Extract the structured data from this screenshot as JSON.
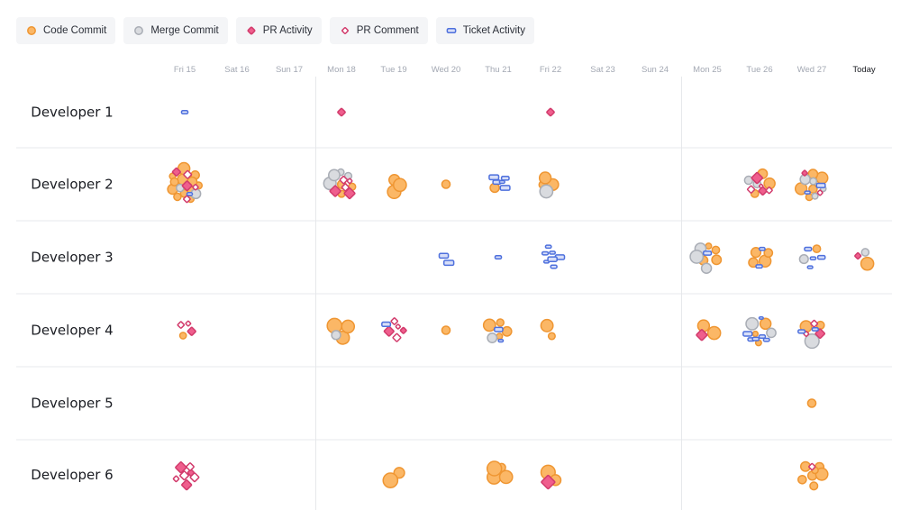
{
  "legend": [
    {
      "key": "code",
      "label": "Code Commit",
      "icon": "orange-circle-icon"
    },
    {
      "key": "merge",
      "label": "Merge Commit",
      "icon": "gray-circle-icon"
    },
    {
      "key": "pr",
      "label": "PR Activity",
      "icon": "pink-diamond-icon"
    },
    {
      "key": "prc",
      "label": "PR Comment",
      "icon": "pink-diamond-outline-icon"
    },
    {
      "key": "ticket",
      "label": "Ticket Activity",
      "icon": "blue-rectangle-icon"
    }
  ],
  "colors": {
    "code_fill": "#fbb766",
    "code_stroke": "#ef9632",
    "merge_fill": "#d9dbdf",
    "merge_stroke": "#a9adb5",
    "pr_fill": "#ef5e8d",
    "pr_stroke": "#d23b6c",
    "prc_stroke": "#d23b6c",
    "ticket_fill": "#d7def8",
    "ticket_stroke": "#4e70dd",
    "grid": "#eceef1",
    "divider": "#e6e8eb"
  },
  "chart_data": {
    "type": "scatter",
    "title": "",
    "days": [
      "Fri 15",
      "Sat 16",
      "Sun 17",
      "Mon 18",
      "Tue 19",
      "Wed 20",
      "Thu 21",
      "Fri 22",
      "Sat 23",
      "Sun 24",
      "Mon 25",
      "Tue 26",
      "Wed 27",
      "Today"
    ],
    "today_label": "Today",
    "rows": [
      "Developer 1",
      "Developer 2",
      "Developer 3",
      "Developer 4",
      "Developer 5",
      "Developer 6"
    ],
    "week_dividers_before": [
      "Mon 18",
      "Mon 25"
    ],
    "series": [
      {
        "name": "Code Commit",
        "key": "code",
        "counts": [
          [
            0,
            0,
            0,
            0,
            0,
            0,
            0,
            0,
            0,
            0,
            0,
            0,
            0,
            0
          ],
          [
            12,
            0,
            0,
            3,
            3,
            1,
            1,
            3,
            0,
            0,
            0,
            3,
            5,
            0
          ],
          [
            0,
            0,
            0,
            0,
            0,
            0,
            0,
            0,
            0,
            0,
            4,
            4,
            1,
            1
          ],
          [
            1,
            0,
            0,
            3,
            0,
            1,
            4,
            2,
            0,
            0,
            2,
            3,
            2,
            0
          ],
          [
            0,
            0,
            0,
            0,
            0,
            0,
            0,
            0,
            0,
            0,
            0,
            0,
            1,
            0
          ],
          [
            0,
            0,
            0,
            0,
            2,
            0,
            4,
            2,
            0,
            0,
            0,
            0,
            7,
            0
          ]
        ]
      },
      {
        "name": "Merge Commit",
        "key": "merge",
        "counts": [
          [
            0,
            0,
            0,
            0,
            0,
            0,
            0,
            0,
            0,
            0,
            0,
            0,
            0,
            0
          ],
          [
            2,
            0,
            0,
            4,
            0,
            0,
            0,
            1,
            0,
            0,
            0,
            2,
            4,
            0
          ],
          [
            0,
            0,
            0,
            0,
            0,
            0,
            0,
            0,
            0,
            0,
            3,
            0,
            1,
            1
          ],
          [
            0,
            0,
            0,
            1,
            0,
            0,
            1,
            0,
            0,
            0,
            0,
            2,
            1,
            0
          ],
          [
            0,
            0,
            0,
            0,
            0,
            0,
            0,
            0,
            0,
            0,
            0,
            0,
            0,
            0
          ],
          [
            0,
            0,
            0,
            0,
            0,
            0,
            0,
            0,
            0,
            0,
            0,
            0,
            0,
            0
          ]
        ]
      },
      {
        "name": "PR Activity",
        "key": "pr",
        "counts": [
          [
            0,
            0,
            0,
            1,
            0,
            0,
            0,
            1,
            0,
            0,
            0,
            0,
            0,
            0
          ],
          [
            2,
            0,
            0,
            2,
            0,
            0,
            0,
            0,
            0,
            0,
            0,
            2,
            1,
            0
          ],
          [
            0,
            0,
            0,
            0,
            0,
            0,
            0,
            0,
            0,
            0,
            0,
            0,
            0,
            1
          ],
          [
            1,
            0,
            0,
            0,
            2,
            0,
            0,
            0,
            0,
            0,
            1,
            0,
            1,
            0
          ],
          [
            0,
            0,
            0,
            0,
            0,
            0,
            0,
            0,
            0,
            0,
            0,
            0,
            0,
            0
          ],
          [
            3,
            0,
            0,
            0,
            0,
            0,
            0,
            1,
            0,
            0,
            0,
            0,
            0,
            0
          ]
        ]
      },
      {
        "name": "PR Comment",
        "key": "prc",
        "counts": [
          [
            0,
            0,
            0,
            0,
            0,
            0,
            0,
            0,
            0,
            0,
            0,
            0,
            0,
            0
          ],
          [
            3,
            0,
            0,
            3,
            0,
            0,
            0,
            0,
            0,
            0,
            0,
            3,
            1,
            0
          ],
          [
            0,
            0,
            0,
            0,
            0,
            0,
            0,
            0,
            0,
            0,
            0,
            0,
            0,
            0
          ],
          [
            2,
            0,
            0,
            0,
            3,
            0,
            0,
            0,
            0,
            0,
            0,
            0,
            2,
            0
          ],
          [
            0,
            0,
            0,
            0,
            0,
            0,
            0,
            0,
            0,
            0,
            0,
            0,
            0,
            0
          ],
          [
            4,
            0,
            0,
            0,
            0,
            0,
            0,
            0,
            0,
            0,
            0,
            0,
            1,
            0
          ]
        ]
      },
      {
        "name": "Ticket Activity",
        "key": "ticket",
        "counts": [
          [
            1,
            0,
            0,
            0,
            0,
            0,
            0,
            0,
            0,
            0,
            0,
            0,
            0,
            0
          ],
          [
            1,
            0,
            0,
            0,
            0,
            0,
            5,
            0,
            0,
            0,
            0,
            0,
            2,
            0
          ],
          [
            0,
            0,
            0,
            0,
            0,
            2,
            1,
            7,
            0,
            0,
            1,
            2,
            4,
            0
          ],
          [
            0,
            0,
            0,
            0,
            1,
            0,
            2,
            0,
            0,
            0,
            0,
            6,
            2,
            0
          ],
          [
            0,
            0,
            0,
            0,
            0,
            0,
            0,
            0,
            0,
            0,
            0,
            0,
            0,
            0
          ],
          [
            0,
            0,
            0,
            0,
            0,
            0,
            0,
            0,
            0,
            0,
            0,
            0,
            0,
            0
          ]
        ]
      }
    ]
  }
}
